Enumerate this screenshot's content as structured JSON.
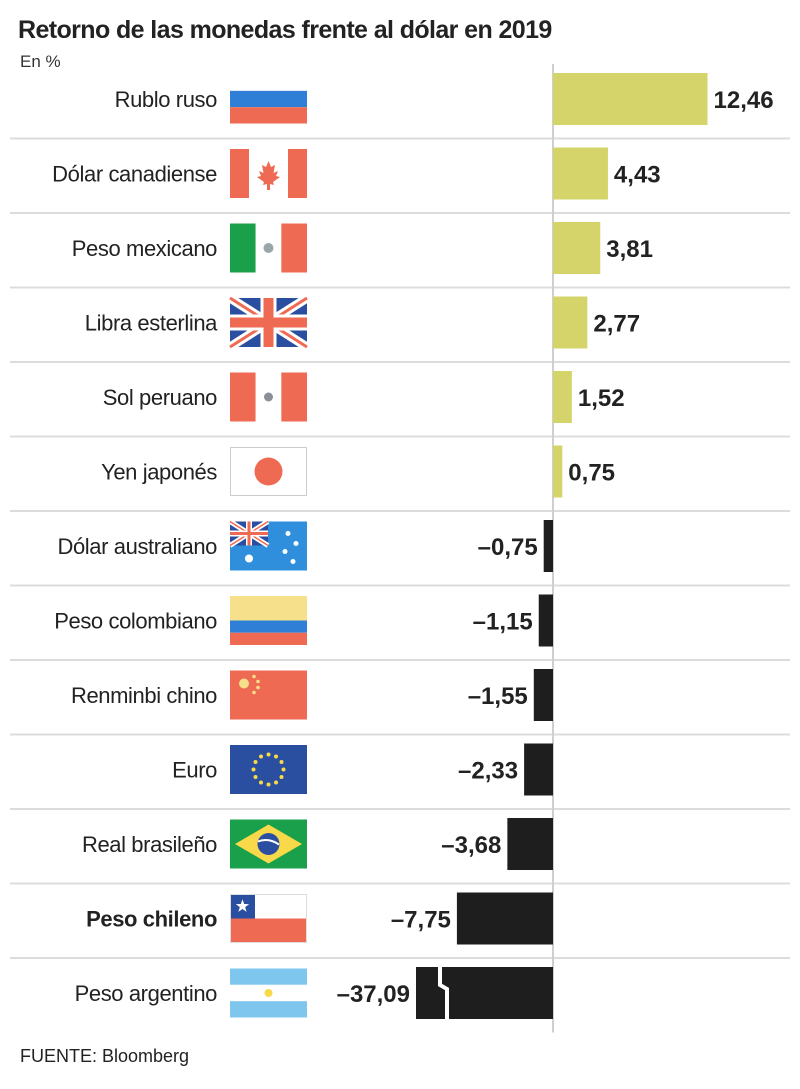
{
  "title": "Retorno de las monedas frente al dólar en 2019",
  "subtitle": "En %",
  "source": "FUENTE: Bloomberg",
  "colors": {
    "positive": "#d4d46a",
    "negative": "#1e1e1e",
    "separator": "#dcdcdc",
    "axis": "#cfcfcf"
  },
  "chart_data": {
    "type": "bar",
    "orientation": "horizontal",
    "categories": [
      "Rublo ruso",
      "Dólar canadiense",
      "Peso mexicano",
      "Libra esterlina",
      "Sol peruano",
      "Yen japonés",
      "Dólar australiano",
      "Peso colombiano",
      "Renminbi chino",
      "Euro",
      "Real brasileño",
      "Peso chileno",
      "Peso argentino"
    ],
    "values": [
      12.46,
      4.43,
      3.81,
      2.77,
      1.52,
      0.75,
      -0.75,
      -1.15,
      -1.55,
      -2.33,
      -3.68,
      -7.75,
      -37.09
    ],
    "value_labels": [
      "12,46",
      "4,43",
      "3,81",
      "2,77",
      "1,52",
      "0,75",
      "–0,75",
      "–1,15",
      "–1,55",
      "–2,33",
      "–3,68",
      "–7,75",
      "–37,09"
    ],
    "flags": [
      "russia",
      "canada",
      "mexico",
      "uk",
      "peru",
      "japan",
      "australia",
      "colombia",
      "china",
      "eu",
      "brazil",
      "chile",
      "argentina"
    ],
    "highlight": "Peso chileno",
    "broken_bar": "Peso argentino",
    "title": "Retorno de las monedas frente al dólar en 2019",
    "xlabel": "",
    "ylabel": "En %"
  }
}
